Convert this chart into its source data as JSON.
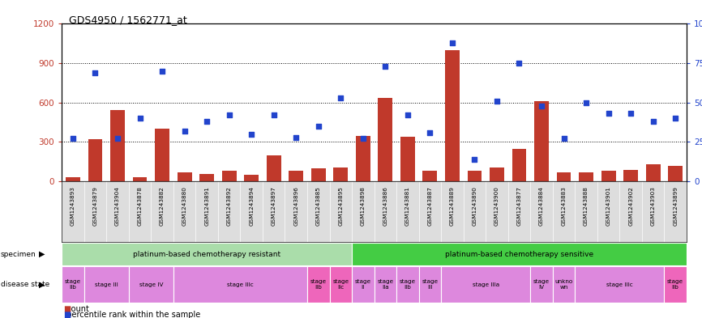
{
  "title": "GDS4950 / 1562771_at",
  "samples": [
    "GSM1243893",
    "GSM1243879",
    "GSM1243904",
    "GSM1243878",
    "GSM1243882",
    "GSM1243880",
    "GSM1243891",
    "GSM1243892",
    "GSM1243894",
    "GSM1243897",
    "GSM1243896",
    "GSM1243885",
    "GSM1243895",
    "GSM1243898",
    "GSM1243886",
    "GSM1243881",
    "GSM1243887",
    "GSM1243889",
    "GSM1243890",
    "GSM1243900",
    "GSM1243877",
    "GSM1243884",
    "GSM1243883",
    "GSM1243888",
    "GSM1243901",
    "GSM1243902",
    "GSM1243903",
    "GSM1243899"
  ],
  "counts": [
    28,
    318,
    543,
    28,
    398,
    68,
    58,
    78,
    48,
    198,
    78,
    98,
    108,
    348,
    638,
    338,
    78,
    998,
    78,
    108,
    248,
    608,
    68,
    68,
    78,
    88,
    128,
    118
  ],
  "percentile_ranks": [
    27,
    69,
    27,
    40,
    70,
    32,
    38,
    42,
    30,
    42,
    28,
    35,
    53,
    27,
    73,
    42,
    31,
    88,
    14,
    51,
    75,
    48,
    27,
    50,
    43,
    43,
    38,
    40
  ],
  "ylim_left": [
    0,
    1200
  ],
  "ylim_right": [
    0,
    100
  ],
  "yticks_left": [
    0,
    300,
    600,
    900,
    1200
  ],
  "yticks_right": [
    0,
    25,
    50,
    75,
    100
  ],
  "bar_color": "#c0392b",
  "dot_color": "#2244cc",
  "plot_bg": "#ffffff",
  "specimen_groups": [
    {
      "label": "platinum-based chemotherapy resistant",
      "start": 0,
      "end": 13,
      "color": "#aaddaa"
    },
    {
      "label": "platinum-based chemotherapy sensitive",
      "start": 13,
      "end": 28,
      "color": "#44cc44"
    }
  ],
  "disease_state_groups": [
    {
      "label": "stage\nIIb",
      "start": 0,
      "end": 1,
      "color": "#dd88dd"
    },
    {
      "label": "stage III",
      "start": 1,
      "end": 3,
      "color": "#dd88dd"
    },
    {
      "label": "stage IV",
      "start": 3,
      "end": 5,
      "color": "#dd88dd"
    },
    {
      "label": "stage IIIc",
      "start": 5,
      "end": 11,
      "color": "#dd88dd"
    },
    {
      "label": "stage\nIIb",
      "start": 11,
      "end": 12,
      "color": "#ee66bb"
    },
    {
      "label": "stage\nIIc",
      "start": 12,
      "end": 13,
      "color": "#ee66bb"
    },
    {
      "label": "stage\nII",
      "start": 13,
      "end": 14,
      "color": "#dd88dd"
    },
    {
      "label": "stage\nIIa",
      "start": 14,
      "end": 15,
      "color": "#dd88dd"
    },
    {
      "label": "stage\nIIb",
      "start": 15,
      "end": 16,
      "color": "#dd88dd"
    },
    {
      "label": "stage\nIII",
      "start": 16,
      "end": 17,
      "color": "#dd88dd"
    },
    {
      "label": "stage IIIa",
      "start": 17,
      "end": 21,
      "color": "#dd88dd"
    },
    {
      "label": "stage\nIV",
      "start": 21,
      "end": 22,
      "color": "#dd88dd"
    },
    {
      "label": "unkno\nwn",
      "start": 22,
      "end": 23,
      "color": "#dd88dd"
    },
    {
      "label": "stage IIIc",
      "start": 23,
      "end": 27,
      "color": "#dd88dd"
    },
    {
      "label": "stage\nIIb",
      "start": 27,
      "end": 28,
      "color": "#ee66bb"
    }
  ]
}
